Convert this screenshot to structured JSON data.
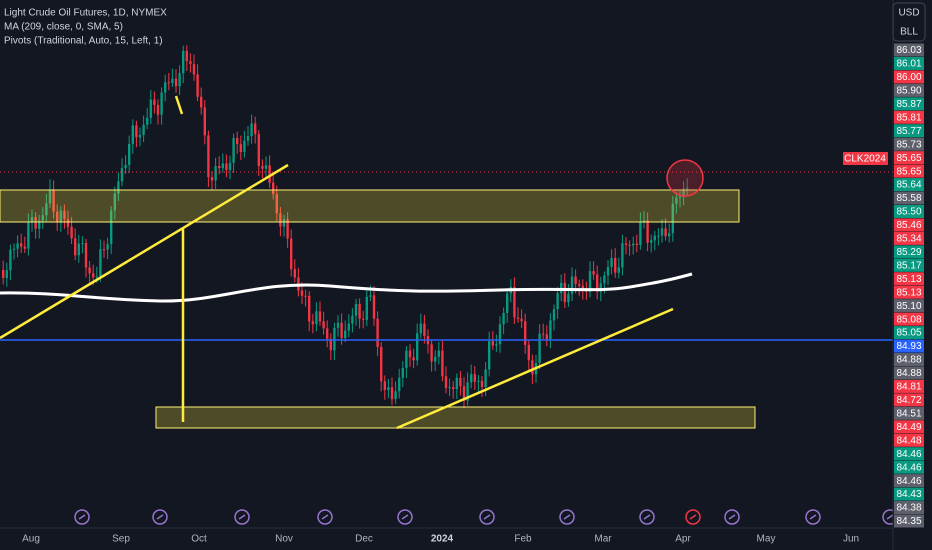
{
  "legend": [
    "Light Crude Oil Futures, 1D, NYMEX",
    "MA (209, close, 0, SMA, 5)",
    "Pivots (Traditional, Auto, 15, Left, 1)"
  ],
  "buttons": [
    "USD",
    "BLL"
  ],
  "symbol_tag": "CLK2024",
  "price_labels": [
    {
      "text": "86.03",
      "color": "#5d606b"
    },
    {
      "text": "86.01",
      "color": "#089981"
    },
    {
      "text": "86.00",
      "color": "#f23645"
    },
    {
      "text": "85.90",
      "color": "#5d606b"
    },
    {
      "text": "85.87",
      "color": "#089981"
    },
    {
      "text": "85.81",
      "color": "#f23645"
    },
    {
      "text": "85.77",
      "color": "#089981"
    },
    {
      "text": "85.73",
      "color": "#5d606b"
    },
    {
      "text": "85.65",
      "color": "#f23645"
    },
    {
      "text": "85.65",
      "color": "#f23645"
    },
    {
      "text": "85.64",
      "color": "#089981"
    },
    {
      "text": "85.58",
      "color": "#5d606b"
    },
    {
      "text": "85.50",
      "color": "#089981"
    },
    {
      "text": "85.46",
      "color": "#f23645"
    },
    {
      "text": "85.34",
      "color": "#f23645"
    },
    {
      "text": "85.29",
      "color": "#089981"
    },
    {
      "text": "85.17",
      "color": "#089981"
    },
    {
      "text": "85.13",
      "color": "#f23645"
    },
    {
      "text": "85.13",
      "color": "#f23645"
    },
    {
      "text": "85.10",
      "color": "#5d606b"
    },
    {
      "text": "85.08",
      "color": "#f23645"
    },
    {
      "text": "85.05",
      "color": "#089981"
    },
    {
      "text": "84.93",
      "color": "#2962ff"
    },
    {
      "text": "84.88",
      "color": "#5d606b"
    },
    {
      "text": "84.88",
      "color": "#5d606b"
    },
    {
      "text": "84.81",
      "color": "#f23645"
    },
    {
      "text": "84.72",
      "color": "#f23645"
    },
    {
      "text": "84.51",
      "color": "#5d606b"
    },
    {
      "text": "84.49",
      "color": "#f23645"
    },
    {
      "text": "84.48",
      "color": "#f23645"
    },
    {
      "text": "84.46",
      "color": "#089981"
    },
    {
      "text": "84.46",
      "color": "#089981"
    },
    {
      "text": "84.46",
      "color": "#5d606b"
    },
    {
      "text": "84.43",
      "color": "#089981"
    },
    {
      "text": "84.38",
      "color": "#5d606b"
    },
    {
      "text": "84.35",
      "color": "#5d606b"
    }
  ],
  "time_labels": [
    {
      "text": "Aug"
    },
    {
      "text": "Sep"
    },
    {
      "text": "Oct"
    },
    {
      "text": "Nov"
    },
    {
      "text": "Dec"
    },
    {
      "text": "2024",
      "bold": true
    },
    {
      "text": "Feb"
    },
    {
      "text": "Mar"
    },
    {
      "text": "Apr"
    },
    {
      "text": "May"
    },
    {
      "text": "Jun"
    }
  ]
}
